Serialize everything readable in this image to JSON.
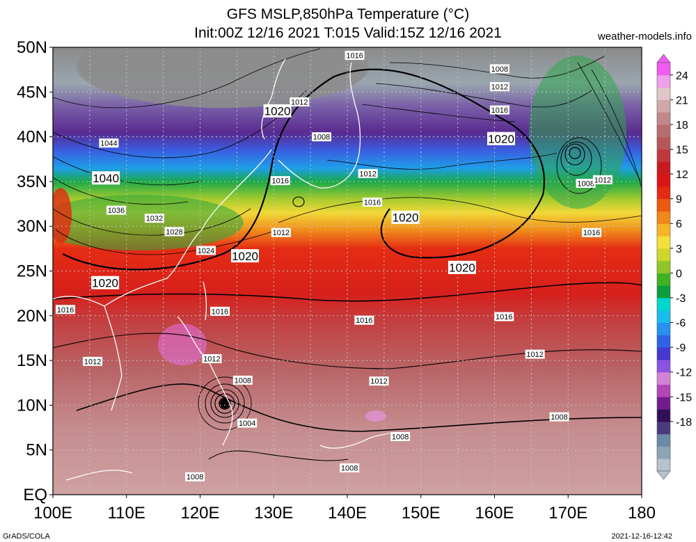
{
  "title_line1": "GFS MSLP,850hPa Temperature (°C)",
  "title_line2": "Init:00Z 12/16 2021 T:015 Valid:15Z 12/16 2021",
  "site": "weather-models.info",
  "credit": "GrADS/COLA",
  "timestamp": "2021-12-16-12:42",
  "lat_labels": [
    "50N",
    "45N",
    "40N",
    "35N",
    "30N",
    "25N",
    "20N",
    "15N",
    "10N",
    "5N",
    "EQ"
  ],
  "lon_labels": [
    "100E",
    "110E",
    "120E",
    "130E",
    "140E",
    "150E",
    "160E",
    "170E",
    "180"
  ],
  "colorbar": {
    "labels": [
      "24",
      "21",
      "18",
      "15",
      "12",
      "9",
      "6",
      "3",
      "0",
      "-3",
      "-6",
      "-9",
      "-12",
      "-15",
      "-18"
    ],
    "colors": [
      "#b4c3cc",
      "#8da4b4",
      "#6a8aa6",
      "#4a3b7d",
      "#300f55",
      "#731c8c",
      "#b345b5",
      "#d383d6",
      "#8d52e3",
      "#4438ce",
      "#2e62e6",
      "#2890ee",
      "#17bdeb",
      "#00d7cf",
      "#0a9f3c",
      "#3fb320",
      "#8fc628",
      "#cfd72c",
      "#f3e03a",
      "#f6b427",
      "#f18718",
      "#ec5a11",
      "#e22b12",
      "#da1517",
      "#c81b20",
      "#c0393d",
      "#b75657",
      "#b86d6f",
      "#c1888a",
      "#d0a8a8",
      "#e0c7c7",
      "#ee9fe9",
      "#f05cf0"
    ]
  },
  "pressure_labels": [
    {
      "text": "1016",
      "lon": 141.0,
      "lat": 49.1
    },
    {
      "text": "1008",
      "lon": 160.7,
      "lat": 47.6
    },
    {
      "text": "1012",
      "lon": 160.7,
      "lat": 45.6
    },
    {
      "text": "1016",
      "lon": 160.7,
      "lat": 43.0
    },
    {
      "text": "1020",
      "lon": 160.9,
      "lat": 39.8,
      "major": true
    },
    {
      "text": "1020",
      "lon": 130.5,
      "lat": 42.9,
      "major": true
    },
    {
      "text": "1012",
      "lon": 133.5,
      "lat": 43.9
    },
    {
      "text": "1008",
      "lon": 136.5,
      "lat": 40.0
    },
    {
      "text": "1044",
      "lon": 107.6,
      "lat": 39.3
    },
    {
      "text": "1040",
      "lon": 107.2,
      "lat": 35.4,
      "major": true
    },
    {
      "text": "1036",
      "lon": 108.6,
      "lat": 31.8
    },
    {
      "text": "1032",
      "lon": 113.8,
      "lat": 30.9
    },
    {
      "text": "1028",
      "lon": 116.5,
      "lat": 29.4
    },
    {
      "text": "1024",
      "lon": 120.8,
      "lat": 27.3
    },
    {
      "text": "1020",
      "lon": 126.1,
      "lat": 26.7,
      "major": true
    },
    {
      "text": "1016",
      "lon": 130.9,
      "lat": 35.1
    },
    {
      "text": "1012",
      "lon": 131.0,
      "lat": 29.3
    },
    {
      "text": "1012",
      "lon": 142.8,
      "lat": 35.9
    },
    {
      "text": "1016",
      "lon": 143.4,
      "lat": 32.7
    },
    {
      "text": "1020",
      "lon": 147.9,
      "lat": 31.0,
      "major": true
    },
    {
      "text": "1020",
      "lon": 155.6,
      "lat": 25.4,
      "major": true
    },
    {
      "text": "1008",
      "lon": 172.4,
      "lat": 34.8
    },
    {
      "text": "1012",
      "lon": 174.7,
      "lat": 35.2
    },
    {
      "text": "1016",
      "lon": 173.2,
      "lat": 29.3
    },
    {
      "text": "1020",
      "lon": 107.1,
      "lat": 23.7,
      "major": true
    },
    {
      "text": "1016",
      "lon": 101.7,
      "lat": 20.7
    },
    {
      "text": "1016",
      "lon": 122.7,
      "lat": 20.5
    },
    {
      "text": "1016",
      "lon": 142.3,
      "lat": 19.5
    },
    {
      "text": "1016",
      "lon": 161.3,
      "lat": 19.9
    },
    {
      "text": "1012",
      "lon": 105.4,
      "lat": 14.9
    },
    {
      "text": "1012",
      "lon": 121.6,
      "lat": 15.2
    },
    {
      "text": "1012",
      "lon": 144.3,
      "lat": 12.7
    },
    {
      "text": "1012",
      "lon": 165.5,
      "lat": 15.7
    },
    {
      "text": "1008",
      "lon": 125.8,
      "lat": 12.8
    },
    {
      "text": "1004",
      "lon": 126.4,
      "lat": 8.0
    },
    {
      "text": "1008",
      "lon": 147.2,
      "lat": 6.5
    },
    {
      "text": "1008",
      "lon": 168.8,
      "lat": 8.7
    },
    {
      "text": "1008",
      "lon": 140.3,
      "lat": 3.0
    },
    {
      "text": "1008",
      "lon": 119.3,
      "lat": 2.0
    }
  ]
}
